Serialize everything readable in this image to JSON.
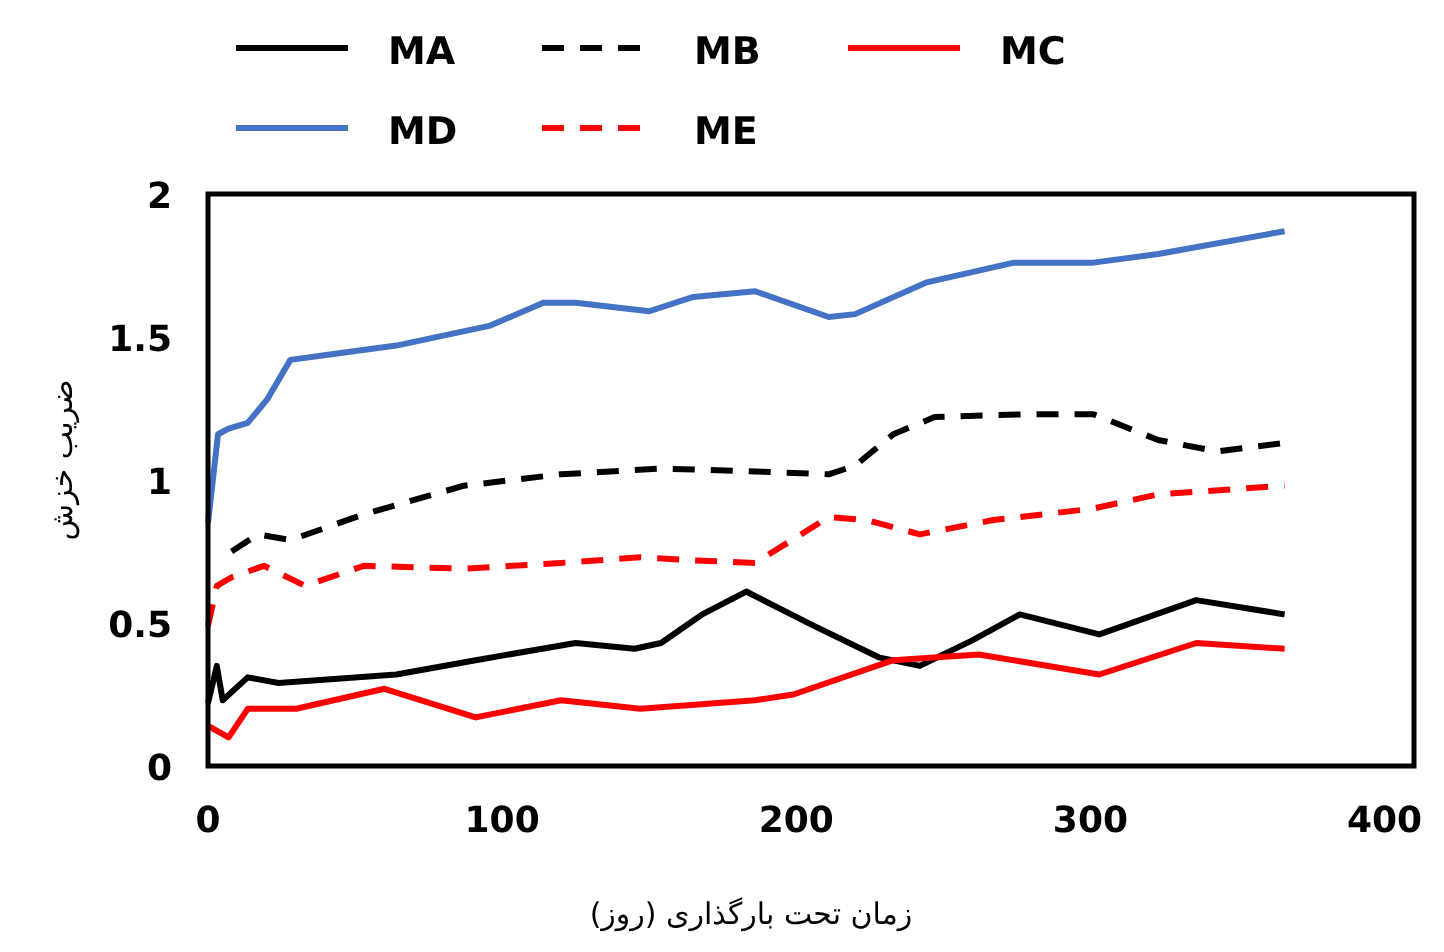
{
  "chart_data": {
    "type": "line",
    "xlabel": "زمان تحت بارگذاری (روز)",
    "ylabel": "ضریب خزش",
    "xlim": [
      0,
      410
    ],
    "xticks": [
      0,
      100,
      200,
      300,
      400
    ],
    "ylim": [
      0,
      2
    ],
    "yticks": [
      0,
      0.5,
      1,
      1.5,
      2
    ],
    "grid": false,
    "legend": "top",
    "marker": "none",
    "series": [
      {
        "name": "MA",
        "color": "#000000",
        "line_style": "solid",
        "x": [
          0,
          3,
          5,
          13.5,
          24,
          64,
          91,
          125,
          145,
          154,
          168,
          183,
          206,
          228,
          242,
          260,
          276,
          303,
          336,
          366
        ],
        "values": [
          0.22,
          0.35,
          0.23,
          0.31,
          0.29,
          0.32,
          0.37,
          0.43,
          0.41,
          0.43,
          0.53,
          0.61,
          0.49,
          0.38,
          0.35,
          0.44,
          0.53,
          0.46,
          0.58,
          0.53
        ]
      },
      {
        "name": "MB",
        "color": "#000000",
        "line_style": "dashed",
        "x": [
          8,
          17,
          28,
          53,
          87,
          120,
          154,
          186,
          211,
          220,
          233,
          247,
          278,
          301,
          323,
          343,
          366
        ],
        "values": [
          0.75,
          0.81,
          0.79,
          0.88,
          0.98,
          1.02,
          1.04,
          1.03,
          1.02,
          1.05,
          1.16,
          1.22,
          1.23,
          1.23,
          1.14,
          1.1,
          1.13
        ]
      },
      {
        "name": "MC",
        "color": "#ff0000",
        "line_style": "solid",
        "x": [
          0,
          7,
          13.5,
          30,
          60,
          91,
          120,
          147,
          186,
          199,
          233,
          262,
          303,
          336,
          366
        ],
        "values": [
          0.14,
          0.1,
          0.2,
          0.2,
          0.27,
          0.17,
          0.23,
          0.2,
          0.23,
          0.25,
          0.37,
          0.39,
          0.32,
          0.43,
          0.41
        ]
      },
      {
        "name": "MD",
        "color": "#4472c4",
        "line_style": "solid",
        "x": [
          0,
          3.4,
          7,
          13.5,
          20,
          28,
          42,
          64,
          96,
          114,
          125,
          150,
          165,
          186,
          211,
          220,
          244,
          274,
          301,
          323,
          366
        ],
        "values": [
          0.85,
          1.16,
          1.18,
          1.2,
          1.28,
          1.42,
          1.44,
          1.47,
          1.54,
          1.62,
          1.62,
          1.59,
          1.64,
          1.66,
          1.57,
          1.58,
          1.69,
          1.76,
          1.76,
          1.79,
          1.87
        ]
      },
      {
        "name": "ME",
        "color": "#ff0000",
        "line_style": "dashed",
        "x": [
          0,
          3,
          8,
          19,
          33,
          53,
          87,
          120,
          147,
          163,
          186,
          211,
          224,
          242,
          267,
          301,
          323,
          366
        ],
        "values": [
          0.49,
          0.63,
          0.66,
          0.7,
          0.63,
          0.7,
          0.69,
          0.71,
          0.73,
          0.72,
          0.71,
          0.87,
          0.86,
          0.81,
          0.86,
          0.9,
          0.95,
          0.98
        ]
      }
    ]
  }
}
